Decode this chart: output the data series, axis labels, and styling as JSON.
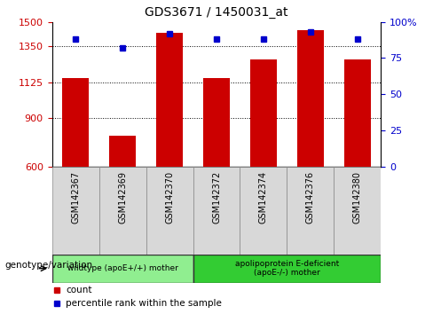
{
  "title": "GDS3671 / 1450031_at",
  "samples": [
    "GSM142367",
    "GSM142369",
    "GSM142370",
    "GSM142372",
    "GSM142374",
    "GSM142376",
    "GSM142380"
  ],
  "counts": [
    1150,
    790,
    1435,
    1150,
    1265,
    1450,
    1265
  ],
  "percentiles": [
    88,
    82,
    92,
    88,
    88,
    93,
    88
  ],
  "ylim_left": [
    600,
    1500
  ],
  "ylim_right": [
    0,
    100
  ],
  "yticks_left": [
    600,
    900,
    1125,
    1350,
    1500
  ],
  "ytick_labels_left": [
    "600",
    "900",
    "1125",
    "1350",
    "1500"
  ],
  "yticks_right": [
    0,
    25,
    50,
    75,
    100
  ],
  "ytick_labels_right": [
    "0",
    "25",
    "50",
    "75",
    "100%"
  ],
  "bar_color": "#cc0000",
  "dot_color": "#0000cc",
  "bar_width": 0.55,
  "group1_label": "wildtype (apoE+/+) mother",
  "group2_label": "apolipoprotein E-deficient\n(apoE-/-) mother",
  "group1_color": "#90ee90",
  "group2_color": "#33cc33",
  "xlabel_label": "genotype/variation",
  "legend_count_label": "count",
  "legend_pct_label": "percentile rank within the sample",
  "grid_color": "black",
  "tick_label_color_left": "#cc0000",
  "tick_label_color_right": "#0000cc",
  "bg_color": "#d8d8d8",
  "n_group1": 3,
  "n_group2": 4
}
